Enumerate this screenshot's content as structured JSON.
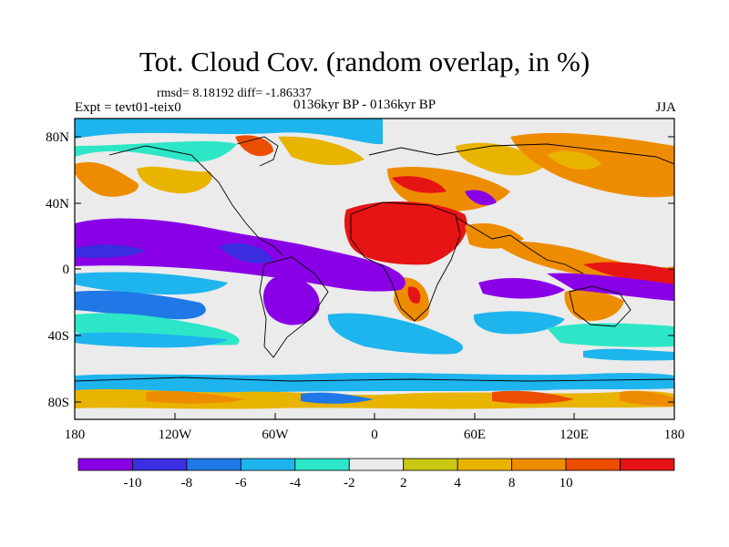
{
  "title": "Tot. Cloud Cov. (random overlap, in %)",
  "stats_line": "rmsd= 8.18192 diff= -1.86337",
  "experiment": "Expt = tevt01-teix0",
  "period": "0136kyr BP - 0136kyr BP",
  "season": "JJA",
  "axes": {
    "y_ticks": [
      "80N",
      "40N",
      "0",
      "40S",
      "80S"
    ],
    "x_ticks": [
      "180",
      "120W",
      "60W",
      "0",
      "60E",
      "120E",
      "180"
    ]
  },
  "colorbar": {
    "colors": [
      "#8a00e6",
      "#3a2ee0",
      "#1f78e6",
      "#1eb4ee",
      "#2de6c8",
      "#ebebeb",
      "#c8c814",
      "#e8b400",
      "#ee8c00",
      "#ec4e00",
      "#e61414"
    ],
    "labels": [
      "-10",
      "-8",
      "-6",
      "-4",
      "-2",
      "2",
      "4",
      "8",
      "10"
    ]
  }
}
